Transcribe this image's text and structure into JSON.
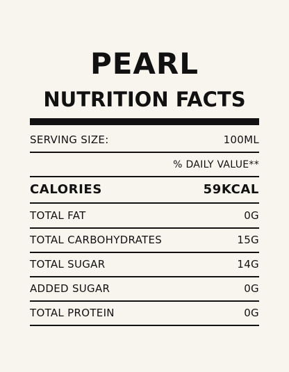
{
  "label": {
    "brand": "PEARL",
    "title": "NUTRITION FACTS",
    "serving": {
      "label": "SERVING SIZE:",
      "value": "100ML"
    },
    "daily_value_note": "% DAILY VALUE**",
    "calories": {
      "label": "CALORIES",
      "value": "59KCAL"
    },
    "rows": [
      {
        "label": "TOTAL FAT",
        "value": "0G"
      },
      {
        "label": "TOTAL CARBOHYDRATES",
        "value": "15G"
      },
      {
        "label": "TOTAL SUGAR",
        "value": "14G"
      },
      {
        "label": "ADDED SUGAR",
        "value": "0G"
      },
      {
        "label": "TOTAL PROTEIN",
        "value": "0G"
      }
    ]
  },
  "colors": {
    "background": "#f8f4ee",
    "text": "#111111"
  }
}
